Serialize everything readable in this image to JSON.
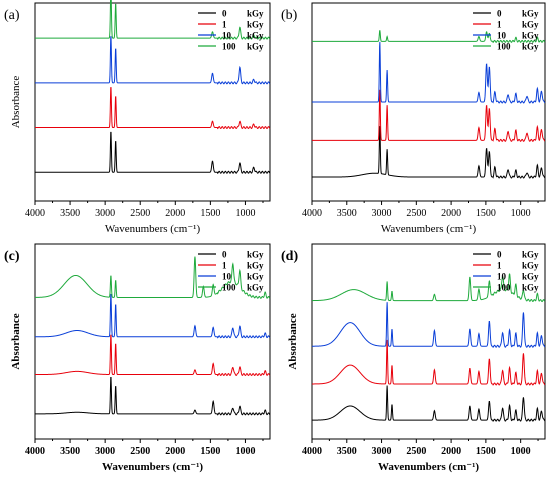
{
  "chart_data": [
    {
      "type": "line",
      "panel_label": "(a)",
      "xlabel": "Wavenumbers (cm⁻¹)",
      "ylabel": "Absorbance",
      "bold_labels": false,
      "xlim": [
        4000,
        650
      ],
      "ylim": [
        0,
        6.2
      ],
      "x_ticks": [
        4000,
        3500,
        3000,
        2500,
        2000,
        1500,
        1000
      ],
      "legend": {
        "position": "top-right",
        "entries": [
          "0",
          "1",
          "10",
          "100"
        ],
        "unit": "kGy"
      },
      "series": [
        {
          "name": "0",
          "color": "#000000",
          "baseline": 0.9,
          "peaks": [
            [
              2918,
              1.3
            ],
            [
              2850,
              1.0
            ],
            [
              1470,
              0.35
            ],
            [
              1080,
              0.3
            ],
            [
              880,
              0.15
            ]
          ],
          "broad": []
        },
        {
          "name": "1",
          "color": "#e8000b",
          "baseline": 2.3,
          "peaks": [
            [
              2918,
              1.3
            ],
            [
              2850,
              1.0
            ],
            [
              1470,
              0.2
            ],
            [
              1080,
              0.2
            ],
            [
              880,
              0.1
            ]
          ],
          "broad": []
        },
        {
          "name": "10",
          "color": "#0a3fd8",
          "baseline": 3.7,
          "peaks": [
            [
              2918,
              1.5
            ],
            [
              2850,
              1.1
            ],
            [
              1470,
              0.3
            ],
            [
              1080,
              0.5
            ],
            [
              880,
              0.1
            ]
          ],
          "broad": []
        },
        {
          "name": "100",
          "color": "#1faa3c",
          "baseline": 5.1,
          "peaks": [
            [
              2918,
              1.6
            ],
            [
              2850,
              1.1
            ],
            [
              1470,
              0.2
            ],
            [
              1080,
              0.35
            ],
            [
              880,
              0.1
            ]
          ],
          "broad": []
        }
      ]
    },
    {
      "type": "line",
      "panel_label": "(b)",
      "xlabel": "Wavenumbers (cm⁻¹)",
      "ylabel": "",
      "bold_labels": false,
      "xlim": [
        4000,
        650
      ],
      "ylim": [
        0,
        6.2
      ],
      "x_ticks": [
        4000,
        3500,
        3000,
        2500,
        2000,
        1500,
        1000
      ],
      "legend": {
        "position": "top-right",
        "entries": [
          "0",
          "1",
          "10",
          "100"
        ],
        "unit": "kGy"
      },
      "series": [
        {
          "name": "0",
          "color": "#000000",
          "baseline": 0.75,
          "peaks": [
            [
              3025,
              1.5
            ],
            [
              2920,
              0.8
            ],
            [
              1600,
              0.35
            ],
            [
              1490,
              0.9
            ],
            [
              1450,
              0.8
            ],
            [
              1370,
              0.3
            ],
            [
              1180,
              0.25
            ],
            [
              1070,
              0.2
            ],
            [
              910,
              0.15
            ],
            [
              760,
              0.35
            ],
            [
              700,
              0.3
            ]
          ],
          "broad": [
            [
              3100,
              250,
              0.12
            ]
          ]
        },
        {
          "name": "1",
          "color": "#e8000b",
          "baseline": 1.9,
          "peaks": [
            [
              3025,
              1.6
            ],
            [
              2920,
              1.1
            ],
            [
              1600,
              0.4
            ],
            [
              1490,
              1.1
            ],
            [
              1450,
              1.0
            ],
            [
              1370,
              0.35
            ],
            [
              1180,
              0.3
            ],
            [
              1070,
              0.3
            ],
            [
              910,
              0.25
            ],
            [
              760,
              0.4
            ],
            [
              700,
              0.35
            ]
          ],
          "broad": []
        },
        {
          "name": "10",
          "color": "#0a3fd8",
          "baseline": 3.1,
          "peaks": [
            [
              3025,
              1.9
            ],
            [
              2920,
              1.0
            ],
            [
              1600,
              0.3
            ],
            [
              1490,
              1.2
            ],
            [
              1450,
              1.1
            ],
            [
              1370,
              0.3
            ],
            [
              1180,
              0.25
            ],
            [
              1070,
              0.25
            ],
            [
              910,
              0.2
            ],
            [
              760,
              0.4
            ],
            [
              700,
              0.35
            ]
          ],
          "broad": []
        },
        {
          "name": "100",
          "color": "#1faa3c",
          "baseline": 5.0,
          "peaks": [
            [
              3025,
              0.35
            ],
            [
              2920,
              0.15
            ],
            [
              1600,
              0.15
            ],
            [
              1490,
              0.3
            ],
            [
              1450,
              0.25
            ],
            [
              1070,
              0.1
            ],
            [
              760,
              0.1
            ]
          ],
          "broad": []
        }
      ]
    },
    {
      "type": "line",
      "panel_label": "(c)",
      "xlabel": "Wavenumbers (cm⁻¹)",
      "ylabel": "Absorbance",
      "bold_labels": true,
      "xlim": [
        4000,
        650
      ],
      "ylim": [
        0,
        6.2
      ],
      "x_ticks": [
        4000,
        3500,
        3000,
        2500,
        2000,
        1500,
        1000
      ],
      "legend": {
        "position": "top-right",
        "entries": [
          "0",
          "1",
          "10",
          "100"
        ],
        "unit": "kGy"
      },
      "series": [
        {
          "name": "0",
          "color": "#000000",
          "baseline": 0.8,
          "peaks": [
            [
              2918,
              1.2
            ],
            [
              2850,
              0.9
            ],
            [
              1720,
              0.12
            ],
            [
              1460,
              0.4
            ],
            [
              1180,
              0.2
            ],
            [
              1080,
              0.25
            ],
            [
              720,
              0.1
            ]
          ],
          "broad": [
            [
              3400,
              220,
              0.05
            ]
          ]
        },
        {
          "name": "1",
          "color": "#e8000b",
          "baseline": 2.05,
          "peaks": [
            [
              2918,
              1.3
            ],
            [
              2850,
              1.0
            ],
            [
              1720,
              0.15
            ],
            [
              1460,
              0.35
            ],
            [
              1180,
              0.25
            ],
            [
              1080,
              0.25
            ],
            [
              720,
              0.1
            ]
          ],
          "broad": [
            [
              3400,
              220,
              0.1
            ]
          ]
        },
        {
          "name": "10",
          "color": "#0a3fd8",
          "baseline": 3.25,
          "peaks": [
            [
              2918,
              1.4
            ],
            [
              2850,
              1.05
            ],
            [
              1720,
              0.35
            ],
            [
              1460,
              0.3
            ],
            [
              1180,
              0.3
            ],
            [
              1080,
              0.35
            ],
            [
              720,
              0.1
            ]
          ],
          "broad": [
            [
              3400,
              220,
              0.2
            ]
          ]
        },
        {
          "name": "100",
          "color": "#1faa3c",
          "baseline": 4.5,
          "peaks": [
            [
              2918,
              0.7
            ],
            [
              2850,
              0.55
            ],
            [
              1720,
              1.3
            ],
            [
              1600,
              0.35
            ],
            [
              1460,
              0.35
            ],
            [
              1180,
              0.6
            ],
            [
              1080,
              0.55
            ],
            [
              720,
              0.15
            ]
          ],
          "broad": [
            [
              3420,
              230,
              0.7
            ],
            [
              1200,
              180,
              0.5
            ]
          ]
        }
      ]
    },
    {
      "type": "line",
      "panel_label": "(d)",
      "xlabel": "Wavenumbers (cm⁻¹)",
      "ylabel": "Absorbance",
      "bold_labels": true,
      "xlim": [
        4000,
        650
      ],
      "ylim": [
        0,
        6.2
      ],
      "x_ticks": [
        4000,
        3500,
        3000,
        2500,
        2000,
        1500,
        1000
      ],
      "legend": {
        "position": "top-right",
        "entries": [
          "0",
          "1",
          "10",
          "100"
        ],
        "unit": "kGy"
      },
      "series": [
        {
          "name": "0",
          "color": "#000000",
          "baseline": 0.6,
          "peaks": [
            [
              2920,
              1.1
            ],
            [
              2850,
              0.5
            ],
            [
              2240,
              0.3
            ],
            [
              1730,
              0.45
            ],
            [
              1600,
              0.35
            ],
            [
              1450,
              0.6
            ],
            [
              1260,
              0.4
            ],
            [
              1160,
              0.45
            ],
            [
              1070,
              0.3
            ],
            [
              960,
              0.75
            ],
            [
              760,
              0.35
            ],
            [
              700,
              0.3
            ]
          ],
          "broad": [
            [
              3450,
              200,
              0.45
            ]
          ]
        },
        {
          "name": "1",
          "color": "#e8000b",
          "baseline": 1.75,
          "peaks": [
            [
              2920,
              1.4
            ],
            [
              2850,
              0.6
            ],
            [
              2240,
              0.45
            ],
            [
              1730,
              0.5
            ],
            [
              1600,
              0.4
            ],
            [
              1450,
              0.8
            ],
            [
              1260,
              0.45
            ],
            [
              1160,
              0.5
            ],
            [
              1070,
              0.35
            ],
            [
              960,
              1.0
            ],
            [
              760,
              0.4
            ],
            [
              700,
              0.35
            ]
          ],
          "broad": [
            [
              3450,
              200,
              0.6
            ]
          ]
        },
        {
          "name": "10",
          "color": "#0a3fd8",
          "baseline": 2.95,
          "peaks": [
            [
              2920,
              1.4
            ],
            [
              2850,
              0.55
            ],
            [
              2240,
              0.5
            ],
            [
              1730,
              0.55
            ],
            [
              1600,
              0.4
            ],
            [
              1450,
              0.8
            ],
            [
              1260,
              0.45
            ],
            [
              1160,
              0.5
            ],
            [
              1070,
              0.4
            ],
            [
              960,
              1.1
            ],
            [
              760,
              0.4
            ],
            [
              700,
              0.35
            ]
          ],
          "broad": [
            [
              3450,
              200,
              0.75
            ]
          ]
        },
        {
          "name": "100",
          "color": "#1faa3c",
          "baseline": 4.4,
          "peaks": [
            [
              2920,
              0.6
            ],
            [
              2850,
              0.3
            ],
            [
              2240,
              0.2
            ],
            [
              1730,
              0.75
            ],
            [
              1600,
              0.35
            ],
            [
              1450,
              0.5
            ],
            [
              1260,
              0.45
            ],
            [
              1160,
              0.55
            ],
            [
              1070,
              0.35
            ],
            [
              960,
              0.3
            ],
            [
              760,
              0.2
            ]
          ],
          "broad": [
            [
              3400,
              250,
              0.35
            ],
            [
              1250,
              200,
              0.35
            ]
          ]
        }
      ]
    }
  ]
}
